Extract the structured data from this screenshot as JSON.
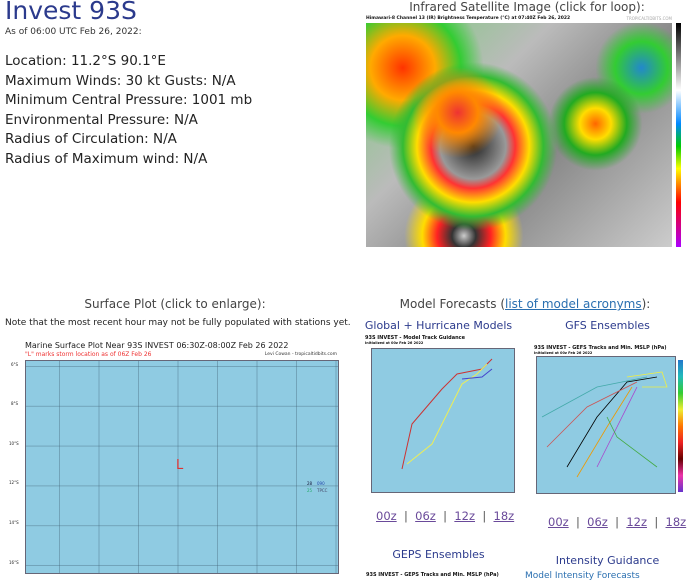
{
  "storm": {
    "title": "Invest 93S",
    "as_of": "As of 06:00 UTC Feb 26, 2022:",
    "details": [
      "Location: 11.2°S 90.1°E",
      "Maximum Winds: 30 kt  Gusts: N/A",
      "Minimum Central Pressure: 1001 mb",
      "Environmental Pressure: N/A",
      "Radius of Circulation: N/A",
      "Radius of Maximum wind: N/A"
    ]
  },
  "satellite": {
    "heading": "Infrared Satellite Image (click for loop):",
    "image_title": "Himawari-8 Channel 13 (IR) Brightness Temperature (°C) at 07:40Z Feb 26, 2022",
    "credit": "TROPICALTIDBITS.COM"
  },
  "surface": {
    "heading": "Surface Plot (click to enlarge):",
    "note": "Note that the most recent hour may not be fully populated with stations yet.",
    "plot_title": "Marine Surface Plot Near 93S INVEST 06:30Z-08:00Z Feb 26 2022",
    "subtitle": "\"L\" marks storm location as of 06Z Feb 26",
    "credit": "Levi Cowan - tropicaltidbits.com",
    "lat_labels": [
      "6°S",
      "8°S",
      "10°S",
      "12°S",
      "14°S",
      "16°S"
    ],
    "storm_marker": "L",
    "station": {
      "temp": "28",
      "pressure": "090",
      "dew": "25",
      "id": "TPCC"
    }
  },
  "models": {
    "heading_prefix": "Model Forecasts (",
    "link": "list of model acronyms",
    "heading_suffix": "):",
    "global": {
      "heading": "Global + Hurricane Models",
      "image_title": "93S INVEST - Model Track Guidance",
      "init": "Initialized at 00z Feb 26 2022",
      "links": [
        "00z",
        "06z",
        "12z",
        "18z"
      ]
    },
    "gfs": {
      "heading": "GFS Ensembles",
      "image_title": "93S INVEST - GEFS Tracks and Min. MSLP (hPa)",
      "init": "Initialized at 00z Feb 26 2022",
      "links": [
        "00z",
        "06z",
        "12z",
        "18z"
      ]
    },
    "geps": {
      "heading": "GEPS Ensembles",
      "image_title": "93S INVEST - GEPS Tracks and Min. MSLP (hPa)"
    },
    "intensity": {
      "heading": "Intensity Guidance",
      "link": "Model Intensity Forecasts"
    }
  }
}
